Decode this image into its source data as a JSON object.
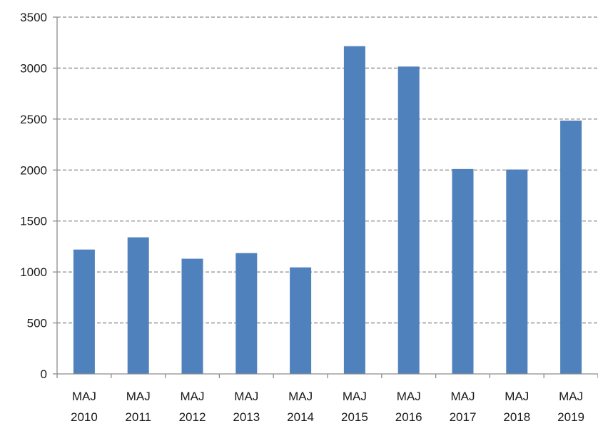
{
  "chart_data": {
    "type": "bar",
    "title": "",
    "xlabel": "",
    "ylabel": "",
    "categories": [
      [
        "MAJ",
        "2010"
      ],
      [
        "MAJ",
        "2011"
      ],
      [
        "MAJ",
        "2012"
      ],
      [
        "MAJ",
        "2013"
      ],
      [
        "MAJ",
        "2014"
      ],
      [
        "MAJ",
        "2015"
      ],
      [
        "MAJ",
        "2016"
      ],
      [
        "MAJ",
        "2017"
      ],
      [
        "MAJ",
        "2018"
      ],
      [
        "MAJ",
        "2019"
      ]
    ],
    "values": [
      1220,
      1340,
      1130,
      1185,
      1045,
      3215,
      3015,
      2010,
      2005,
      2485
    ],
    "ylim": [
      0,
      3500
    ],
    "yticks": [
      0,
      500,
      1000,
      1500,
      2000,
      2500,
      3000,
      3500
    ],
    "grid": true,
    "legend": "none",
    "colors": {
      "bar": "#4f81bd",
      "grid": "#8c8c8c",
      "axis": "#8c8c8c",
      "text": "#1a1a1a"
    }
  }
}
